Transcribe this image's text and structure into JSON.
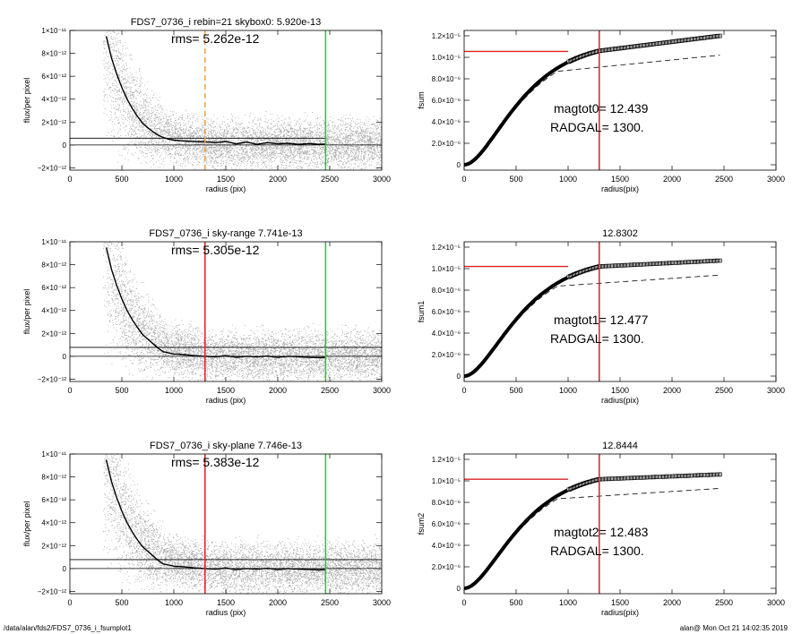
{
  "footer": {
    "path": "/data/alan/fds2/FDS7_0736_i_fsumplot1",
    "stamp": "alan@  Mon Oct 21 14:02:35 2019"
  },
  "colors": {
    "scatter": "#9a9a9a",
    "profile": "#000000",
    "red_line": "#e02020",
    "green_line": "#22cc22",
    "orange_line": "#f0a040",
    "dashed": "#000000"
  },
  "chart_data": [
    {
      "panel": "profile-1",
      "type": "scatter",
      "title": "FDS7_0736_i rebin=21    skybox0:  5.920e-13",
      "annotation": "rms= 5.262e-12",
      "xlabel": "radius (pix)",
      "ylabel": "flux/per pixel",
      "xlim": [
        0,
        3000
      ],
      "ylim": [
        -2.2e-12,
        1e-11
      ],
      "xticks": [
        "0",
        "500",
        "1000",
        "1500",
        "2000",
        "2500",
        "3000"
      ],
      "yticks": [
        {
          "value": 1e-11,
          "label": "1×10⁻¹¹"
        },
        {
          "value": 8e-12,
          "label": "8×10⁻¹²"
        },
        {
          "value": 6e-12,
          "label": "6×10⁻¹²"
        },
        {
          "value": 4e-12,
          "label": "4×10⁻¹²"
        },
        {
          "value": 2e-12,
          "label": "2×10⁻¹²"
        },
        {
          "value": 0,
          "label": "0"
        },
        {
          "value": -2e-12,
          "label": "−2×10⁻¹²"
        }
      ],
      "sky_level": 5.92e-13,
      "vlines": [
        {
          "x": 1300,
          "color": "orange",
          "style": "dashed"
        },
        {
          "x": 2460,
          "color": "green",
          "style": "solid"
        }
      ],
      "hline_extent": [
        0,
        2460
      ],
      "profile": {
        "x": [
          350,
          400,
          450,
          500,
          550,
          600,
          650,
          700,
          750,
          800,
          850,
          900,
          950,
          1000,
          1100,
          1200,
          1300,
          1400,
          1500,
          1600,
          1700,
          1800,
          1900,
          2000,
          2100,
          2200,
          2300,
          2400,
          2460
        ],
        "y": [
          9.5e-12,
          7.6e-12,
          6.2e-12,
          5e-12,
          4e-12,
          3.2e-12,
          2.5e-12,
          1.9e-12,
          1.5e-12,
          1.15e-12,
          8.5e-13,
          6.5e-13,
          5e-13,
          4.2e-13,
          3.5e-13,
          3e-13,
          2.8e-13,
          2e-13,
          3e-13,
          1e-13,
          2.5e-13,
          5e-14,
          2e-13,
          1e-13,
          1.5e-13,
          5e-14,
          1.2e-13,
          5e-14,
          8e-14
        ]
      },
      "scatter_seed": 11
    },
    {
      "panel": "curve-1",
      "type": "line",
      "title": "",
      "xlabel": "radius(pix)",
      "ylabel": "fsum",
      "xlim": [
        0,
        3000
      ],
      "ylim": [
        -5e-07,
        1.25e-05
      ],
      "xticks": [
        "0",
        "500",
        "1000",
        "1500",
        "2000",
        "2500",
        "3000"
      ],
      "yticks": [
        {
          "value": 1.2e-05,
          "label": "1.2×10⁻⁵"
        },
        {
          "value": 1e-05,
          "label": "1.0×10⁻⁵"
        },
        {
          "value": 8e-06,
          "label": "8.0×10⁻⁶"
        },
        {
          "value": 6e-06,
          "label": "6.0×10⁻⁶"
        },
        {
          "value": 4e-06,
          "label": "4.0×10⁻⁶"
        },
        {
          "value": 2e-06,
          "label": "2.0×10⁻⁶"
        },
        {
          "value": 0,
          "label": "0"
        }
      ],
      "annotations": [
        "magtot0=  12.439",
        "RADGAL=   1300."
      ],
      "red_hline": {
        "y": 1.055e-05,
        "x_end": 1000
      },
      "red_vline": 1300,
      "growth": {
        "total": 1.2e-05,
        "plateau_at_1300": 1.06e-05
      },
      "dashed": {
        "end": 1.02e-05
      }
    },
    {
      "panel": "profile-2",
      "type": "scatter",
      "title": "FDS7_0736_i sky-range  7.741e-13",
      "annotation": "rms= 5.305e-12",
      "xlabel": "radius (pix)",
      "ylabel": "flux/per pixel",
      "xlim": [
        0,
        3000
      ],
      "ylim": [
        -2.2e-12,
        1e-11
      ],
      "xticks": [
        "0",
        "500",
        "1000",
        "1500",
        "2000",
        "2500",
        "3000"
      ],
      "yticks": [
        {
          "value": 1e-11,
          "label": "1×10⁻¹¹"
        },
        {
          "value": 8e-12,
          "label": "8×10⁻¹²"
        },
        {
          "value": 6e-12,
          "label": "6×10⁻¹²"
        },
        {
          "value": 4e-12,
          "label": "4×10⁻¹²"
        },
        {
          "value": 2e-12,
          "label": "2×10⁻¹²"
        },
        {
          "value": 0,
          "label": "0"
        },
        {
          "value": -2e-12,
          "label": "−2×10⁻¹²"
        }
      ],
      "sky_level": 7.741e-13,
      "vlines": [
        {
          "x": 1300,
          "color": "red",
          "style": "solid"
        },
        {
          "x": 2460,
          "color": "green",
          "style": "solid"
        }
      ],
      "hline_extent": [
        0,
        3000
      ],
      "profile": {
        "x": [
          350,
          400,
          450,
          500,
          550,
          600,
          650,
          700,
          750,
          800,
          850,
          900,
          950,
          1000,
          1100,
          1200,
          1300,
          1400,
          1500,
          1600,
          1700,
          1800,
          1900,
          2000,
          2100,
          2200,
          2300,
          2400,
          2460
        ],
        "y": [
          9.5e-12,
          7.6e-12,
          6.2e-12,
          5e-12,
          4e-12,
          3.2e-12,
          2.5e-12,
          1.9e-12,
          1.5e-12,
          1.1e-12,
          7e-13,
          4e-13,
          3e-13,
          2e-13,
          1.5e-13,
          5e-14,
          0.0,
          -5e-14,
          5e-14,
          -1e-13,
          0.0,
          -5e-14,
          2e-14,
          -1e-13,
          0.0,
          -5e-14,
          -1e-13,
          -1.2e-13,
          -1e-13
        ]
      },
      "scatter_seed": 23
    },
    {
      "panel": "curve-2",
      "type": "line",
      "title": "12.8302",
      "xlabel": "radius(pix)",
      "ylabel": "fsum1",
      "xlim": [
        0,
        3000
      ],
      "ylim": [
        -5e-07,
        1.25e-05
      ],
      "xticks": [
        "0",
        "500",
        "1000",
        "1500",
        "2000",
        "2500",
        "3000"
      ],
      "yticks": [
        {
          "value": 1.2e-05,
          "label": "1.2×10⁻⁵"
        },
        {
          "value": 1e-05,
          "label": "1.0×10⁻⁵"
        },
        {
          "value": 8e-06,
          "label": "8.0×10⁻⁶"
        },
        {
          "value": 6e-06,
          "label": "6.0×10⁻⁶"
        },
        {
          "value": 4e-06,
          "label": "4.0×10⁻⁶"
        },
        {
          "value": 2e-06,
          "label": "2.0×10⁻⁶"
        },
        {
          "value": 0,
          "label": "0"
        }
      ],
      "annotations": [
        "magtot1=  12.477",
        "RADGAL=   1300."
      ],
      "red_hline": {
        "y": 1.02e-05,
        "x_end": 1000
      },
      "red_vline": 1300,
      "growth": {
        "total": 1.075e-05,
        "plateau_at_1300": 1.02e-05
      },
      "dashed": {
        "end": 9.4e-06
      }
    },
    {
      "panel": "profile-3",
      "type": "scatter",
      "title": "FDS7_0736_i sky-plane  7.746e-13",
      "annotation": "rms= 5.383e-12",
      "xlabel": "radius (pix)",
      "ylabel": "flux/per pixel",
      "xlim": [
        0,
        3000
      ],
      "ylim": [
        -2.2e-12,
        1e-11
      ],
      "xticks": [
        "0",
        "500",
        "1000",
        "1500",
        "2000",
        "2500",
        "3000"
      ],
      "yticks": [
        {
          "value": 1e-11,
          "label": "1×10⁻¹¹"
        },
        {
          "value": 8e-12,
          "label": "8×10⁻¹²"
        },
        {
          "value": 6e-12,
          "label": "6×10⁻¹²"
        },
        {
          "value": 4e-12,
          "label": "4×10⁻¹²"
        },
        {
          "value": 2e-12,
          "label": "2×10⁻¹²"
        },
        {
          "value": 0,
          "label": "0"
        },
        {
          "value": -2e-12,
          "label": "−2×10⁻¹²"
        }
      ],
      "sky_level": 7.746e-13,
      "vlines": [
        {
          "x": 1300,
          "color": "red",
          "style": "solid"
        },
        {
          "x": 2460,
          "color": "green",
          "style": "solid"
        }
      ],
      "hline_extent": [
        0,
        3000
      ],
      "profile": {
        "x": [
          350,
          400,
          450,
          500,
          550,
          600,
          650,
          700,
          750,
          800,
          850,
          900,
          950,
          1000,
          1100,
          1200,
          1300,
          1400,
          1500,
          1600,
          1700,
          1800,
          1900,
          2000,
          2100,
          2200,
          2300,
          2400,
          2460
        ],
        "y": [
          9.5e-12,
          7.6e-12,
          6.2e-12,
          5e-12,
          4e-12,
          3.2e-12,
          2.5e-12,
          1.9e-12,
          1.5e-12,
          1.1e-12,
          7e-13,
          4e-13,
          3e-13,
          2e-13,
          1.5e-13,
          5e-14,
          0.0,
          -5e-14,
          5e-14,
          -1e-13,
          0.0,
          -5e-14,
          2e-14,
          -1e-13,
          0.0,
          -5e-14,
          -1e-13,
          -1.2e-13,
          -1e-13
        ]
      },
      "scatter_seed": 37
    },
    {
      "panel": "curve-3",
      "type": "line",
      "title": "12.8444",
      "xlabel": "radius(pix)",
      "ylabel": "fsum2",
      "xlim": [
        0,
        3000
      ],
      "ylim": [
        -5e-07,
        1.25e-05
      ],
      "xticks": [
        "0",
        "500",
        "1000",
        "1500",
        "2000",
        "2500",
        "3000"
      ],
      "yticks": [
        {
          "value": 1.2e-05,
          "label": "1.2×10⁻⁵"
        },
        {
          "value": 1e-05,
          "label": "1.0×10⁻⁵"
        },
        {
          "value": 8e-06,
          "label": "8.0×10⁻⁶"
        },
        {
          "value": 6e-06,
          "label": "6.0×10⁻⁶"
        },
        {
          "value": 4e-06,
          "label": "4.0×10⁻⁶"
        },
        {
          "value": 2e-06,
          "label": "2.0×10⁻⁶"
        },
        {
          "value": 0,
          "label": "0"
        }
      ],
      "annotations": [
        "magtot2=  12.483",
        "RADGAL=   1300."
      ],
      "red_hline": {
        "y": 1.015e-05,
        "x_end": 1000
      },
      "red_vline": 1300,
      "growth": {
        "total": 1.06e-05,
        "plateau_at_1300": 1.015e-05
      },
      "dashed": {
        "end": 9.3e-06
      }
    }
  ]
}
